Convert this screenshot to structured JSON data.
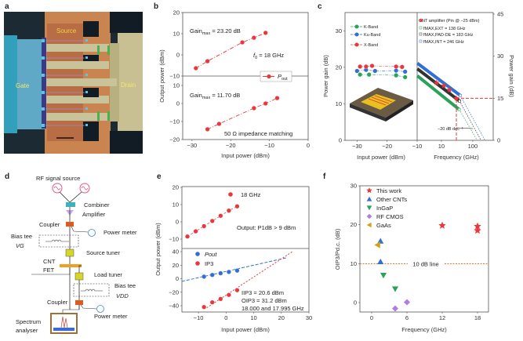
{
  "panel_labels": {
    "a": "a",
    "b": "b",
    "c": "c",
    "d": "d",
    "e": "e",
    "f": "f"
  },
  "panel_a": {
    "gate": "Gate",
    "source": "Source",
    "drain": "Drain"
  },
  "panel_b": {
    "ylabel": "Output power (dBm)",
    "xlabel": "Input power (dBm)",
    "gain_top_main": "Gain",
    "gain_top_sub": "max",
    "gain_top_val": " = 23.20 dB",
    "gain_bot_main": "Gain",
    "gain_bot_sub": "max",
    "gain_bot_val": " = 11.70 dB",
    "f0_main": "f",
    "f0_sub": "0",
    "f0_val": " = 18 GHz",
    "legend_main": "P",
    "legend_sub": "out",
    "impedance": "50 Ω impedance matching"
  },
  "panel_c": {
    "ylabel_left": "Power gain (dB)",
    "ylabel_right": "Power gain (dB)",
    "xlabel_left": "Input power (dBm)",
    "xlabel_right": "Frequency (GHz)",
    "legend_bands": [
      "K-Band",
      "Ku-Band",
      "X-Band"
    ],
    "legend_right": [
      "CNT amplifier (Pin @ −25 dBm)",
      "fMAX,EXT = 138 GHz",
      "fMAX,PAD-DE = 183 GHz",
      "fMAX,INT = 246 GHz"
    ],
    "slope": "−20 dB dec⁻¹"
  },
  "panel_d": {
    "rf_source": "RF signal source",
    "combiner": "Combiner",
    "amplifier": "Amplifier",
    "coupler1": "Coupler",
    "power_meter1": "Power meter",
    "bias_tee1": "Bias tee",
    "vg": "VG",
    "source_tuner": "Source tuner",
    "cnt": "CNT",
    "fet": "FET",
    "load_tuner": "Load tuner",
    "bias_tee2": "Bias tee",
    "vdd": "VDD",
    "coupler2": "Coupler",
    "power_meter2": "Power meter",
    "spectrum": "Spectrum",
    "analyser": "analyser"
  },
  "panel_e": {
    "ylabel": "Output power (dBm)",
    "xlabel": "Input power (dBm)",
    "legend_18": "18 GHz",
    "p1db": "Output: P1dB > 9 dBm",
    "legend_pout": "Pout",
    "legend_ip3": "IP3",
    "iip3": "IIP3 = 20.6 dBm",
    "oip3": "OIP3 = 31.2 dBm",
    "freqs": "18.000 and 17.995 GHz"
  },
  "panel_f": {
    "ylabel": "OIP3/Pd.c. (dB)",
    "xlabel": "Frequency (GHz)",
    "line_label": "10 dB line"
  },
  "colors": {
    "red": "#e8383d",
    "blue": "#2f6fd6",
    "green": "#2aa35a",
    "purple": "#b07ee0",
    "gold": "#d4a017",
    "orange": "#e8641e",
    "black": "#333333"
  },
  "chart_data": [
    {
      "panel": "b",
      "type": "line",
      "xlabel": "Input power (dBm)",
      "ylabel": "Output power (dBm)",
      "xlim": [
        -32.5,
        0
      ],
      "xticks": [
        -30,
        -20,
        -10,
        0
      ],
      "subplots": [
        {
          "ylim": [
            -10,
            20
          ],
          "yticks": [
            -10,
            0,
            10,
            20
          ],
          "series": [
            {
              "name": "Pout",
              "x": [
                -29,
                -26,
                -17,
                -14,
                -11
              ],
              "y": [
                -6.3,
                -3,
                5.9,
                8.1,
                10.4
              ]
            }
          ]
        },
        {
          "ylim": [
            -20,
            15
          ],
          "yticks": [
            -20,
            -10,
            0,
            10
          ],
          "series": [
            {
              "name": "Pout",
              "x": [
                -26,
                -23,
                -14,
                -11,
                -8
              ],
              "y": [
                -14.3,
                -11.3,
                -2.6,
                0,
                3
              ]
            }
          ]
        }
      ]
    },
    {
      "panel": "c",
      "type": "line",
      "subplots": [
        {
          "xlabel": "Input power (dBm)",
          "ylabel": "Power gain (dB)",
          "xlim": [
            -34,
            -10
          ],
          "ylim": [
            0,
            35
          ],
          "xticks": [
            -30,
            -20,
            -10
          ],
          "yticks": [
            0,
            10,
            20,
            30
          ],
          "series": [
            {
              "name": "K-Band",
              "x": [
                -29,
                -26,
                -17,
                -14
              ],
              "y": [
                18,
                18,
                17.8,
                17.3
              ]
            },
            {
              "name": "Ku-Band",
              "x": [
                -30,
                -27,
                -24,
                -17,
                -14
              ],
              "y": [
                19,
                19.3,
                19,
                19.1,
                18.8
              ]
            },
            {
              "name": "X-Band",
              "x": [
                -29,
                -27,
                -25,
                -17,
                -15
              ],
              "y": [
                20.2,
                20.2,
                20.4,
                20.2,
                20.1
              ]
            }
          ]
        },
        {
          "xlabel": "Frequency (GHz)",
          "ylabel": "Power gain (dB)",
          "xscale": "log",
          "xlim": [
            1.7,
            450
          ],
          "ylim": [
            0,
            45
          ],
          "xticks": [
            10,
            100
          ],
          "yticks": [
            0,
            15,
            30,
            45
          ],
          "series": [
            {
              "name": "fMAX,INT = 246 GHz",
              "x": [
                1.7,
                40,
                246
              ],
              "y": [
                27.5,
                16,
                0
              ]
            },
            {
              "name": "fMAX,PAD-DE = 183 GHz",
              "x": [
                1.7,
                38,
                183
              ],
              "y": [
                25.5,
                14,
                0
              ]
            },
            {
              "name": "fMAX,EXT = 138 GHz",
              "x": [
                1.7,
                37,
                138
              ],
              "y": [
                23,
                11,
                0
              ]
            },
            {
              "name": "CNT amplifier (Pin @ −25 dBm)",
              "x": [
                7,
                12,
                18,
                30
              ],
              "y": [
                20.5,
                19.5,
                18,
                15
              ]
            }
          ],
          "reference": {
            "gain_db": 15,
            "freq_ghz": 30
          }
        }
      ]
    },
    {
      "panel": "e",
      "type": "scatter",
      "xlabel": "Input power (dBm)",
      "ylabel": "Output power (dBm)",
      "xlim": [
        -16,
        30
      ],
      "xticks": [
        -10,
        0,
        10,
        20,
        30
      ],
      "subplots": [
        {
          "ylim": [
            -14,
            20
          ],
          "yticks": [
            -10,
            0,
            10,
            20
          ],
          "series": [
            {
              "name": "18 GHz",
              "x": [
                -14,
                -11,
                -8,
                -5,
                -2,
                1,
                4
              ],
              "y": [
                -8.5,
                -5.5,
                -2.5,
                0.5,
                3.5,
                6.5,
                9
              ]
            }
          ]
        },
        {
          "ylim": [
            -49,
            44
          ],
          "yticks": [
            -40,
            -20,
            0,
            20,
            40
          ],
          "series": [
            {
              "name": "Pout",
              "x": [
                -8,
                -5,
                -2,
                1,
                4
              ],
              "y": [
                3,
                5.5,
                8,
                10,
                12
              ]
            },
            {
              "name": "IP3",
              "x": [
                -8,
                -5,
                -2,
                1,
                4
              ],
              "y": [
                -42,
                -35,
                -30,
                -24,
                -17
              ]
            }
          ]
        }
      ]
    },
    {
      "panel": "f",
      "type": "scatter",
      "xlabel": "Frequency (GHz)",
      "ylabel": "OIP3/Pd.c. (dB)",
      "xlim": [
        -2,
        20
      ],
      "ylim": [
        -2.4,
        30
      ],
      "xticks": [
        0,
        6,
        12,
        18
      ],
      "yticks": [
        0,
        10,
        20,
        30
      ],
      "legend": "top-left",
      "reference_line": 10,
      "series": [
        {
          "name": "This work",
          "x": [
            12,
            18,
            18
          ],
          "y": [
            19.8,
            19.6,
            18.5
          ]
        },
        {
          "name": "Other CNTs",
          "x": [
            1.5,
            1.5
          ],
          "y": [
            15.8,
            10.5
          ]
        },
        {
          "name": "InGaP",
          "x": [
            2,
            4
          ],
          "y": [
            7,
            3.5
          ]
        },
        {
          "name": "RF CMOS",
          "x": [
            4,
            6
          ],
          "y": [
            -1.5,
            0.1
          ]
        },
        {
          "name": "GaAs",
          "x": [
            1,
            1
          ],
          "y": [
            14.8,
            14.8
          ]
        }
      ]
    }
  ]
}
